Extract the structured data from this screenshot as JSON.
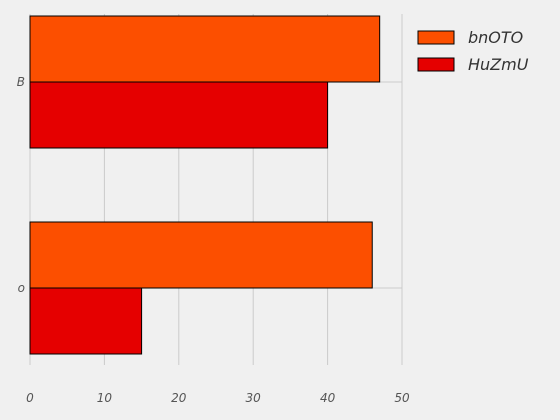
{
  "chart_data": {
    "type": "bar",
    "orientation": "horizontal",
    "categories": [
      "o",
      "B"
    ],
    "series": [
      {
        "name": "bnOTO",
        "values": [
          46,
          47
        ],
        "color": "#fc4f00"
      },
      {
        "name": "HuZmU",
        "values": [
          15,
          40
        ],
        "color": "#e50000"
      }
    ],
    "xlim": [
      0,
      50
    ],
    "xticks": [
      0,
      10,
      20,
      30,
      40,
      50
    ],
    "grid": true,
    "legend": "top-right",
    "background": "#f0f0f0"
  }
}
